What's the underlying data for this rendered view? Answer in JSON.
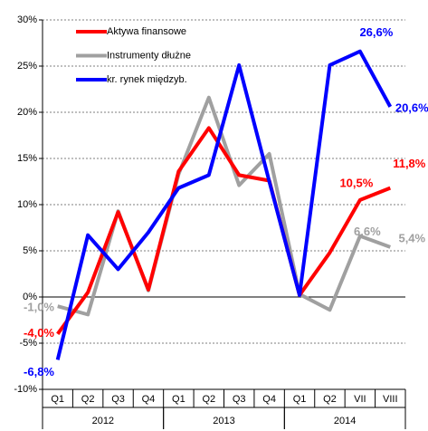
{
  "chart_data": {
    "type": "line",
    "categories": [
      "Q1",
      "Q2",
      "Q3",
      "Q4",
      "Q1",
      "Q2",
      "Q3",
      "Q4",
      "Q1",
      "Q2",
      "VII",
      "VIII"
    ],
    "groups": [
      {
        "label": "2012",
        "count": 4
      },
      {
        "label": "2013",
        "count": 4
      },
      {
        "label": "2014",
        "count": 4
      }
    ],
    "series": [
      {
        "name": "Aktywa finansowe",
        "color": "#ff0000",
        "values": [
          -4.0,
          0.5,
          9.2,
          0.8,
          13.6,
          18.3,
          13.2,
          12.6,
          0.2,
          4.8,
          10.5,
          11.8
        ],
        "value_labels": [
          "-4,0%",
          null,
          null,
          null,
          null,
          null,
          null,
          null,
          null,
          null,
          "10,5%",
          "11,8%"
        ]
      },
      {
        "name": "Instrumenty dłużne",
        "color": "#a0a0a0",
        "values": [
          -1.0,
          -1.9,
          9.3,
          0.7,
          13.3,
          21.6,
          12.1,
          15.5,
          0.3,
          -1.4,
          6.6,
          5.4
        ],
        "value_labels": [
          "-1,0%",
          null,
          null,
          null,
          null,
          null,
          null,
          null,
          null,
          null,
          "6,6%",
          "5,4%"
        ]
      },
      {
        "name": "kr. rynek międzyb.",
        "color": "#0000ff",
        "values": [
          -6.8,
          6.7,
          3.0,
          7.0,
          11.8,
          13.2,
          25.1,
          12.5,
          0.2,
          25.1,
          26.6,
          20.6
        ],
        "value_labels": [
          "-6,8%",
          null,
          null,
          null,
          null,
          null,
          null,
          null,
          null,
          null,
          "26,6%",
          "20,6%"
        ]
      }
    ],
    "ylim": [
      -10,
      30
    ],
    "yticks": [
      {
        "value": -10,
        "label": "-10%"
      },
      {
        "value": -5,
        "label": "-5%"
      },
      {
        "value": 0,
        "label": "0%"
      },
      {
        "value": 5,
        "label": "5%"
      },
      {
        "value": 10,
        "label": "10%"
      },
      {
        "value": 15,
        "label": "15%"
      },
      {
        "value": 20,
        "label": "20%"
      },
      {
        "value": 25,
        "label": "25%"
      },
      {
        "value": 30,
        "label": "30%"
      }
    ],
    "grid": true,
    "legend": "top-left"
  }
}
